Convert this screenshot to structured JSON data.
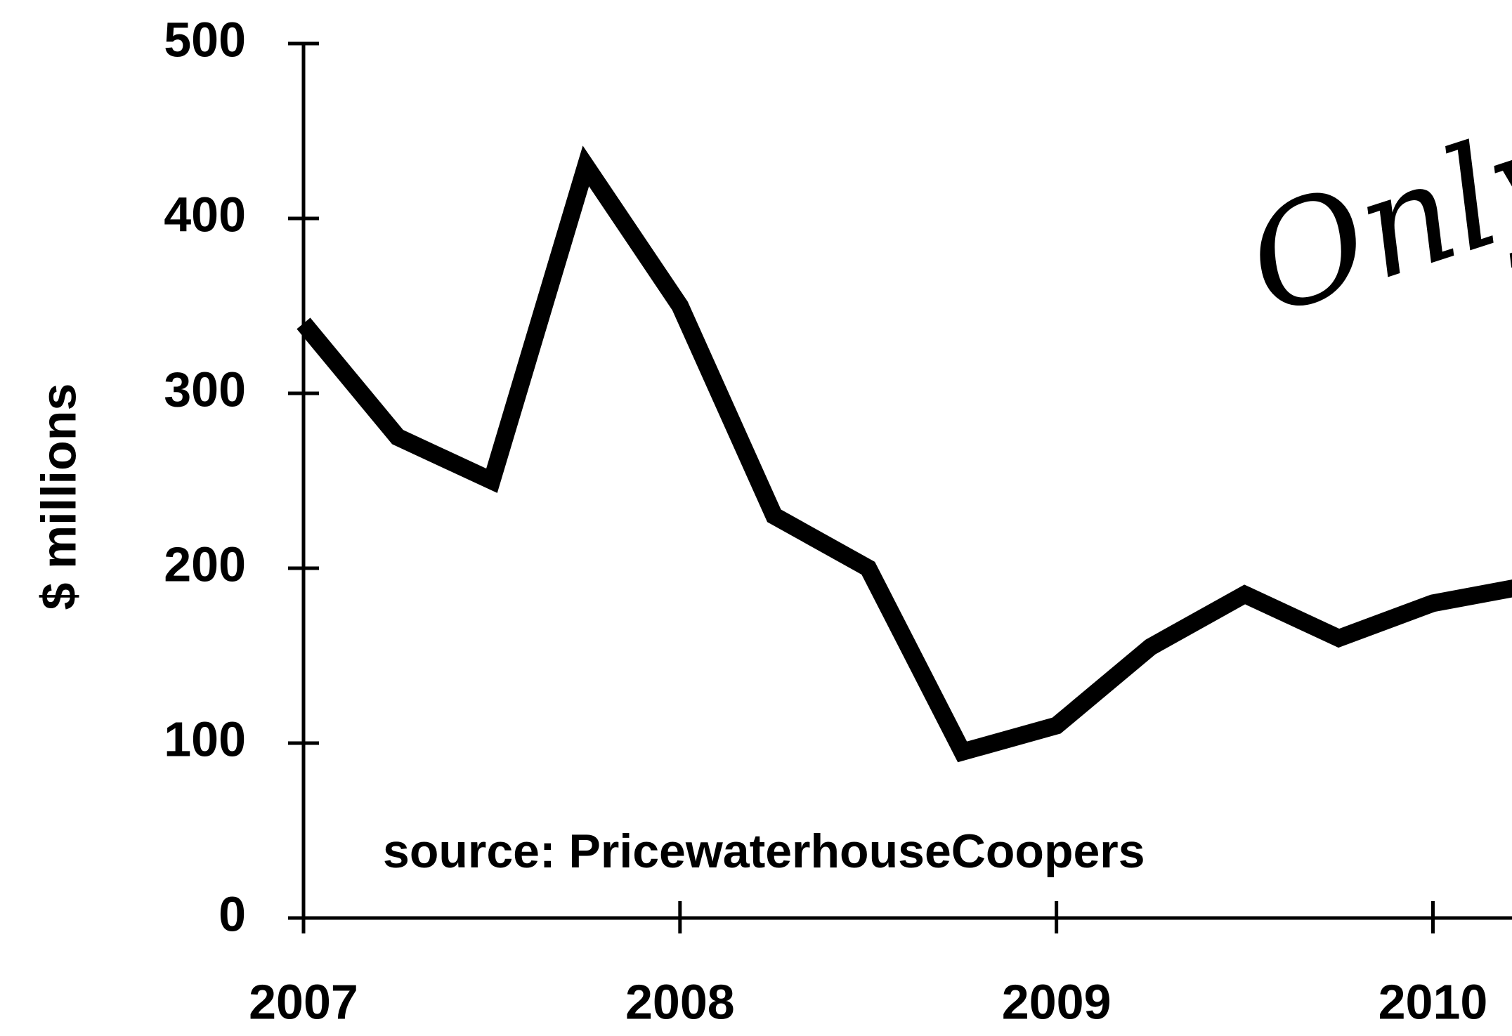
{
  "chart_data": {
    "type": "line",
    "x": [
      2007,
      2007.25,
      2007.5,
      2007.75,
      2008,
      2008.25,
      2008.5,
      2008.75,
      2009,
      2009.25,
      2009.5,
      2009.75,
      2010,
      2010.25
    ],
    "series": [
      {
        "name": "$ millions",
        "color": "#000000",
        "values": [
          340,
          275,
          250,
          430,
          350,
          230,
          200,
          95,
          110,
          155,
          185,
          160,
          180,
          190
        ]
      }
    ],
    "y_label": "$ millions",
    "annotations": [
      "source: PricewaterhouseCoopers",
      "Only"
    ],
    "xlim": [
      2007,
      2010.21
    ],
    "xticks": [
      2007,
      2008,
      2009,
      2010
    ],
    "ylim": [
      0,
      500
    ],
    "yticks": [
      0,
      100,
      200,
      300,
      400,
      500
    ],
    "grid": false
  }
}
